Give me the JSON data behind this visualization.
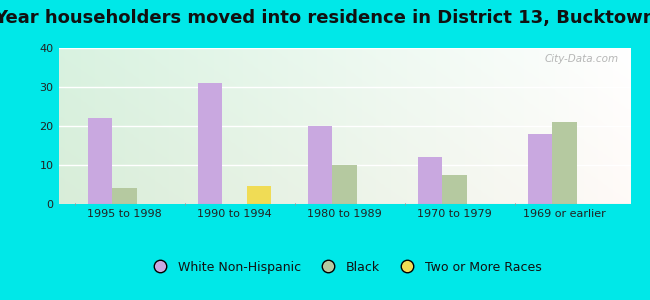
{
  "title": "Year householders moved into residence in District 13, Bucktown",
  "categories": [
    "1995 to 1998",
    "1990 to 1994",
    "1980 to 1989",
    "1970 to 1979",
    "1969 or earlier"
  ],
  "series": {
    "White Non-Hispanic": [
      22,
      31,
      20,
      12,
      18
    ],
    "Black": [
      4,
      0,
      10,
      7.5,
      21
    ],
    "Two or More Races": [
      0,
      4.5,
      0,
      0,
      0
    ]
  },
  "colors": {
    "White Non-Hispanic": "#c9a8e0",
    "Black": "#b5c9a0",
    "Two or More Races": "#f0dc55"
  },
  "ylim": [
    0,
    40
  ],
  "yticks": [
    0,
    10,
    20,
    30,
    40
  ],
  "background_outer": "#00e8e8",
  "watermark": "City-Data.com",
  "bar_width": 0.22,
  "title_fontsize": 13,
  "legend_fontsize": 9,
  "tick_fontsize": 8
}
